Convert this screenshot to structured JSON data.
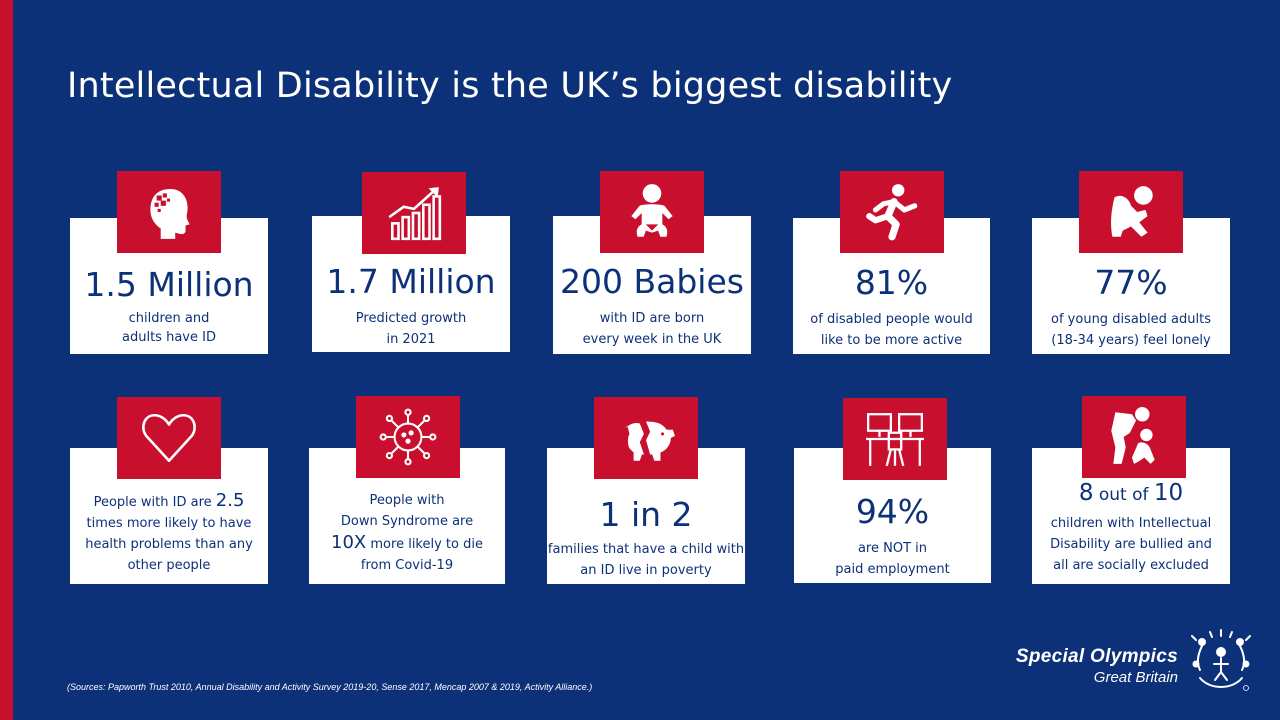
{
  "title": "Intellectual Disability is the UK’s biggest disability",
  "stats_row1": [
    {
      "icon": "head-puzzle-icon",
      "big": "1.5 Million",
      "line1": "children and",
      "line2": "adults have ID"
    },
    {
      "icon": "growth-chart-icon",
      "big": "1.7 Million",
      "line1": "Predicted growth",
      "line2": "in 2021"
    },
    {
      "icon": "baby-icon",
      "big": "200 Babies",
      "line1": "with ID are born",
      "line2": "every week in the UK"
    },
    {
      "icon": "running-person-icon",
      "big": "81%",
      "line1": "of disabled people would",
      "line2": "like to be more active"
    },
    {
      "icon": "sitting-person-icon",
      "big": "77%",
      "line1": "of young disabled adults",
      "line2": "(18-34 years) feel lonely"
    }
  ],
  "stats_row2": {
    "health": {
      "icon": "heart-icon",
      "t1": "People with ID are ",
      "num": "2.5",
      "t2": "times more likely to have",
      "t3": "health problems than any",
      "t4": "other people"
    },
    "covid": {
      "icon": "virus-icon",
      "t1": "People with",
      "t2": "Down Syndrome are",
      "num": "10X",
      "t3": " more likely to die",
      "t4": "from Covid-19"
    },
    "poverty": {
      "icon": "broken-piggy-bank-icon",
      "big": "1 in 2",
      "line1": "families that have a child with",
      "line2": "an ID live in poverty"
    },
    "employment": {
      "icon": "empty-desk-icon",
      "big": "94%",
      "line1": "are NOT in",
      "line2": "paid employment"
    },
    "bullying": {
      "icon": "bullying-icon",
      "num1": "8",
      "mid": " out of ",
      "num2": "10",
      "line1": "children with Intellectual",
      "line2": "Disability are bullied and",
      "line3": "all are socially excluded"
    }
  },
  "sources": "(Sources: Papworth Trust 2010, Annual Disability and Activity Survey 2019-20, Sense 2017, Mencap 2007 & 2019, Activity Alliance.)",
  "logo": {
    "main": "Special Olympics",
    "sub": "Great Britain",
    "icon": "special-olympics-emblem-icon"
  },
  "colors": {
    "background": "#0d3178",
    "accent": "#c8102e",
    "card": "#ffffff"
  }
}
